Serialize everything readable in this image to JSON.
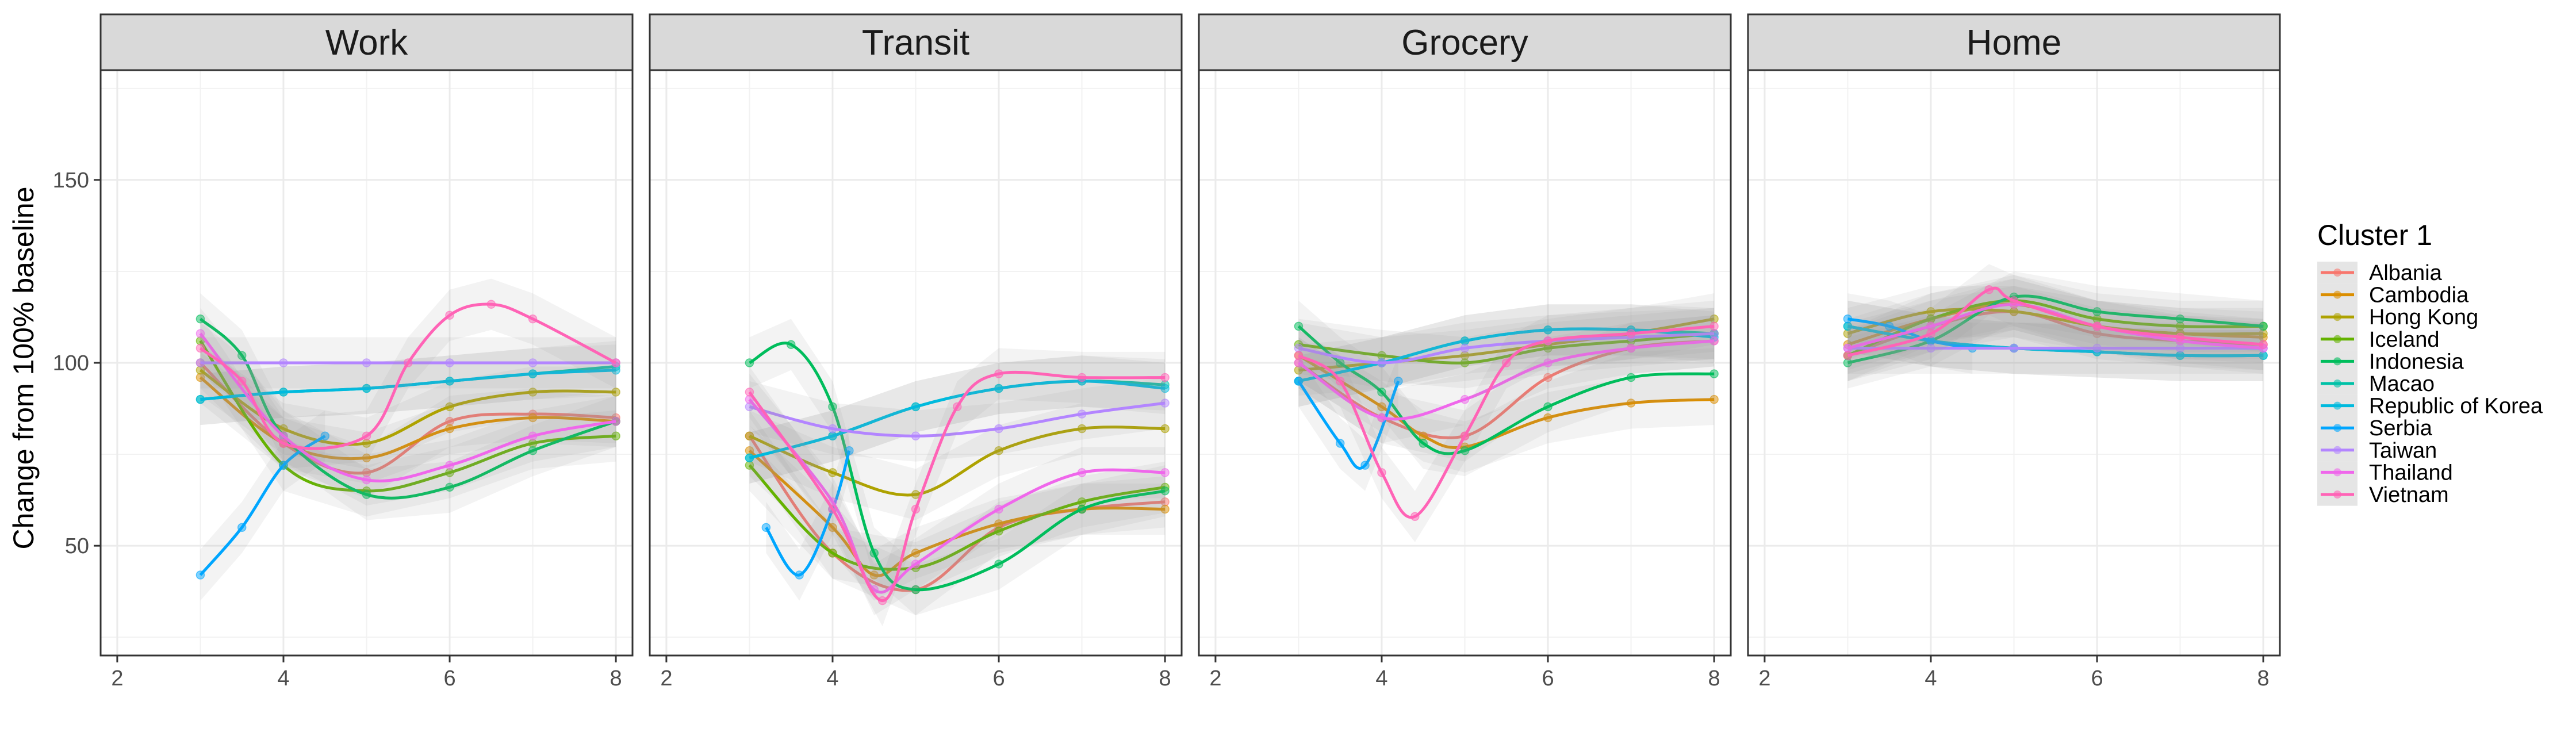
{
  "chart_data": {
    "type": "line",
    "facets": [
      "Work",
      "Transit",
      "Grocery",
      "Home"
    ],
    "ylabel": "Change from 100% baseline",
    "xlabel": "",
    "xlim": [
      1.8,
      8.2
    ],
    "ylim": [
      20,
      180
    ],
    "xticks": [
      2,
      4,
      6,
      8
    ],
    "yticks": [
      50,
      100,
      150
    ],
    "grid": true,
    "legend": {
      "title": "Cluster 1",
      "placement": "right",
      "entries": [
        "Albania",
        "Cambodia",
        "Hong Kong",
        "Iceland",
        "Indonesia",
        "Macao",
        "Republic of Korea",
        "Serbia",
        "Taiwan",
        "Thailand",
        "Vietnam"
      ]
    },
    "colors": {
      "Albania": "#F8766D",
      "Cambodia": "#DB8E00",
      "Hong Kong": "#AEA200",
      "Iceland": "#64B200",
      "Indonesia": "#00BD5C",
      "Macao": "#00C1A7",
      "Republic of Korea": "#00BADE",
      "Serbia": "#00A6FF",
      "Taiwan": "#B385FF",
      "Thailand": "#EF67EB",
      "Vietnam": "#FF63B6"
    },
    "series": {
      "Work": [
        {
          "name": "Albania",
          "x": [
            3,
            4,
            5,
            6,
            7,
            8
          ],
          "y": [
            100,
            78,
            70,
            84,
            86,
            85
          ]
        },
        {
          "name": "Cambodia",
          "x": [
            3,
            4,
            5,
            6,
            7,
            8
          ],
          "y": [
            96,
            78,
            74,
            82,
            85,
            84
          ]
        },
        {
          "name": "Hong Kong",
          "x": [
            3,
            4,
            5,
            6,
            7,
            8
          ],
          "y": [
            98,
            82,
            78,
            88,
            92,
            92
          ]
        },
        {
          "name": "Iceland",
          "x": [
            3,
            4,
            5,
            6,
            7,
            8
          ],
          "y": [
            106,
            72,
            65,
            70,
            78,
            80
          ]
        },
        {
          "name": "Indonesia",
          "x": [
            3,
            3.5,
            4,
            5,
            6,
            7,
            8
          ],
          "y": [
            112,
            102,
            80,
            64,
            66,
            76,
            84
          ]
        },
        {
          "name": "Macao",
          "x": [
            3,
            4,
            5,
            6,
            7,
            8
          ],
          "y": [
            90,
            92,
            93,
            95,
            97,
            99
          ]
        },
        {
          "name": "Republic of Korea",
          "x": [
            3,
            4,
            5,
            6,
            7,
            8
          ],
          "y": [
            90,
            92,
            93,
            95,
            97,
            98
          ]
        },
        {
          "name": "Serbia",
          "x": [
            3,
            3.5,
            4,
            4.5
          ],
          "y": [
            42,
            55,
            72,
            80
          ]
        },
        {
          "name": "Taiwan",
          "x": [
            3,
            4,
            5,
            6,
            7,
            8
          ],
          "y": [
            100,
            100,
            100,
            100,
            100,
            100
          ]
        },
        {
          "name": "Thailand",
          "x": [
            3,
            4,
            5,
            6,
            7,
            8
          ],
          "y": [
            108,
            80,
            68,
            72,
            80,
            84
          ]
        },
        {
          "name": "Vietnam",
          "x": [
            3,
            3.5,
            4,
            5,
            5.5,
            6,
            6.5,
            7,
            8
          ],
          "y": [
            104,
            95,
            78,
            80,
            100,
            113,
            116,
            112,
            100
          ]
        }
      ],
      "Transit": [
        {
          "name": "Albania",
          "x": [
            3,
            4,
            5,
            6,
            7,
            8
          ],
          "y": [
            80,
            48,
            38,
            55,
            60,
            62
          ]
        },
        {
          "name": "Cambodia",
          "x": [
            3,
            4,
            4.5,
            5,
            6,
            7,
            8
          ],
          "y": [
            76,
            55,
            42,
            48,
            56,
            60,
            60
          ]
        },
        {
          "name": "Hong Kong",
          "x": [
            3,
            4,
            5,
            6,
            7,
            8
          ],
          "y": [
            80,
            70,
            64,
            76,
            82,
            82
          ]
        },
        {
          "name": "Iceland",
          "x": [
            3,
            4,
            5,
            6,
            7,
            8
          ],
          "y": [
            72,
            48,
            44,
            54,
            62,
            66
          ]
        },
        {
          "name": "Indonesia",
          "x": [
            3,
            3.5,
            4,
            4.5,
            5,
            6,
            7,
            8
          ],
          "y": [
            100,
            105,
            88,
            48,
            38,
            45,
            60,
            65
          ]
        },
        {
          "name": "Macao",
          "x": [
            3,
            4,
            5,
            6,
            7,
            8
          ],
          "y": [
            74,
            80,
            88,
            93,
            95,
            94
          ]
        },
        {
          "name": "Republic of Korea",
          "x": [
            3,
            4,
            5,
            6,
            7,
            8
          ],
          "y": [
            74,
            80,
            88,
            93,
            95,
            93
          ]
        },
        {
          "name": "Serbia",
          "x": [
            3.2,
            3.6,
            4,
            4.2
          ],
          "y": [
            55,
            42,
            60,
            76
          ]
        },
        {
          "name": "Taiwan",
          "x": [
            3,
            4,
            5,
            6,
            7,
            8
          ],
          "y": [
            88,
            82,
            80,
            82,
            86,
            89
          ]
        },
        {
          "name": "Thailand",
          "x": [
            3,
            4,
            4.5,
            5,
            6,
            7,
            8
          ],
          "y": [
            90,
            62,
            38,
            45,
            60,
            70,
            70
          ]
        },
        {
          "name": "Vietnam",
          "x": [
            3,
            4,
            4.6,
            5,
            5.5,
            6,
            7,
            8
          ],
          "y": [
            92,
            60,
            35,
            60,
            88,
            97,
            96,
            96
          ]
        }
      ],
      "Grocery": [
        {
          "name": "Albania",
          "x": [
            3,
            4,
            5,
            6,
            7,
            8
          ],
          "y": [
            100,
            85,
            80,
            96,
            104,
            106
          ]
        },
        {
          "name": "Cambodia",
          "x": [
            3,
            4,
            4.5,
            5,
            6,
            7,
            8
          ],
          "y": [
            102,
            88,
            80,
            77,
            85,
            89,
            90
          ]
        },
        {
          "name": "Hong Kong",
          "x": [
            3,
            4,
            5,
            6,
            7,
            8
          ],
          "y": [
            98,
            100,
            102,
            105,
            108,
            112
          ]
        },
        {
          "name": "Iceland",
          "x": [
            3,
            4,
            5,
            6,
            7,
            8
          ],
          "y": [
            105,
            102,
            100,
            104,
            106,
            108
          ]
        },
        {
          "name": "Indonesia",
          "x": [
            3,
            3.5,
            4,
            4.5,
            5,
            6,
            7,
            8
          ],
          "y": [
            110,
            100,
            92,
            78,
            76,
            88,
            96,
            97
          ]
        },
        {
          "name": "Macao",
          "x": [
            3,
            4,
            5,
            6,
            7,
            8
          ],
          "y": [
            95,
            100,
            106,
            109,
            109,
            108
          ]
        },
        {
          "name": "Republic of Korea",
          "x": [
            3,
            4,
            5,
            6,
            7,
            8
          ],
          "y": [
            95,
            100,
            106,
            109,
            109,
            107
          ]
        },
        {
          "name": "Serbia",
          "x": [
            3,
            3.5,
            3.8,
            4.2
          ],
          "y": [
            95,
            78,
            72,
            95
          ]
        },
        {
          "name": "Taiwan",
          "x": [
            3,
            4,
            5,
            6,
            7,
            8
          ],
          "y": [
            104,
            100,
            104,
            106,
            107,
            108
          ]
        },
        {
          "name": "Thailand",
          "x": [
            3,
            4,
            5,
            6,
            7,
            8
          ],
          "y": [
            100,
            85,
            90,
            100,
            104,
            106
          ]
        },
        {
          "name": "Vietnam",
          "x": [
            3,
            3.5,
            4,
            4.4,
            5,
            5.5,
            6,
            7,
            8
          ],
          "y": [
            102,
            95,
            70,
            58,
            80,
            100,
            106,
            108,
            110
          ]
        }
      ],
      "Home": [
        {
          "name": "Albania",
          "x": [
            3,
            4,
            5,
            6,
            7,
            8
          ],
          "y": [
            102,
            110,
            114,
            108,
            106,
            105
          ]
        },
        {
          "name": "Cambodia",
          "x": [
            3,
            4,
            5,
            6,
            7,
            8
          ],
          "y": [
            105,
            112,
            116,
            110,
            108,
            107
          ]
        },
        {
          "name": "Hong Kong",
          "x": [
            3,
            4,
            5,
            6,
            7,
            8
          ],
          "y": [
            108,
            114,
            114,
            110,
            108,
            108
          ]
        },
        {
          "name": "Iceland",
          "x": [
            3,
            4,
            5,
            6,
            7,
            8
          ],
          "y": [
            102,
            112,
            117,
            112,
            110,
            110
          ]
        },
        {
          "name": "Indonesia",
          "x": [
            3,
            4,
            5,
            6,
            7,
            8
          ],
          "y": [
            100,
            106,
            118,
            114,
            112,
            110
          ]
        },
        {
          "name": "Macao",
          "x": [
            3,
            4,
            5,
            6,
            7,
            8
          ],
          "y": [
            110,
            106,
            104,
            103,
            102,
            102
          ]
        },
        {
          "name": "Republic of Korea",
          "x": [
            3,
            4,
            5,
            6,
            7,
            8
          ],
          "y": [
            110,
            106,
            104,
            103,
            102,
            102
          ]
        },
        {
          "name": "Serbia",
          "x": [
            3,
            3.5,
            4,
            4.5
          ],
          "y": [
            112,
            110,
            106,
            104
          ]
        },
        {
          "name": "Taiwan",
          "x": [
            3,
            4,
            5,
            6,
            7,
            8
          ],
          "y": [
            104,
            104,
            104,
            104,
            104,
            104
          ]
        },
        {
          "name": "Thailand",
          "x": [
            3,
            4,
            5,
            6,
            7,
            8
          ],
          "y": [
            104,
            110,
            116,
            110,
            106,
            104
          ]
        },
        {
          "name": "Vietnam",
          "x": [
            3,
            4,
            4.7,
            5,
            6,
            7,
            8
          ],
          "y": [
            102,
            108,
            120,
            117,
            110,
            107,
            105
          ]
        }
      ]
    }
  }
}
